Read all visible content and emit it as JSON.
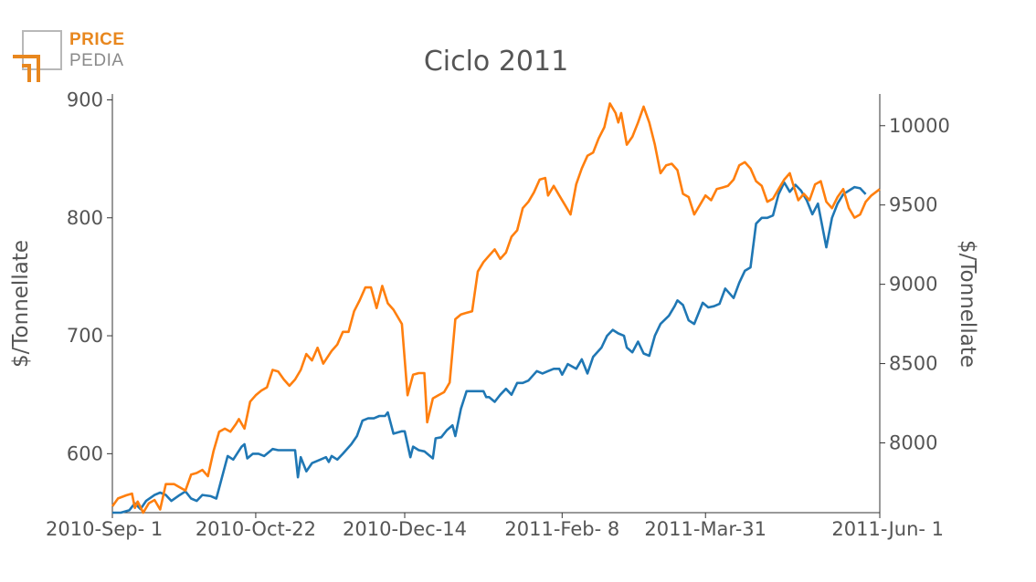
{
  "logo": {
    "top": "PRICE",
    "bottom": "PEDIA",
    "accent": "#e8871e",
    "gray": "#8a8a8a"
  },
  "chart_data": {
    "type": "line",
    "title": "Ciclo 2011",
    "ylabel_left": "$/Tonnellate",
    "ylabel_right": "$/Tonnellate",
    "xlim": [
      "2010-09-01",
      "2011-06-01"
    ],
    "ylim_left": [
      550,
      905
    ],
    "ylim_right": [
      7560,
      10200
    ],
    "x_ticks": [
      {
        "date": "2010-09-01",
        "label": "2010-Sep- 1"
      },
      {
        "date": "2010-10-22",
        "label": "2010-Oct-22"
      },
      {
        "date": "2010-12-14",
        "label": "2010-Dec-14"
      },
      {
        "date": "2011-02-08",
        "label": "2011-Feb- 8"
      },
      {
        "date": "2011-03-31",
        "label": "2011-Mar-31"
      },
      {
        "date": "2011-06-01",
        "label": "2011-Jun- 1"
      }
    ],
    "y_ticks_left": [
      600,
      700,
      800,
      900
    ],
    "y_ticks_right": [
      8000,
      8500,
      9000,
      9500,
      10000
    ],
    "grid": false,
    "legend": "none",
    "series": [
      {
        "axis": "left",
        "color": "#1f77b4",
        "points": [
          [
            "2010-09-01",
            550
          ],
          [
            "2010-09-04",
            550
          ],
          [
            "2010-09-07",
            552
          ],
          [
            "2010-09-09",
            558
          ],
          [
            "2010-09-11",
            553
          ],
          [
            "2010-09-13",
            560
          ],
          [
            "2010-09-16",
            565
          ],
          [
            "2010-09-18",
            567
          ],
          [
            "2010-09-20",
            565
          ],
          [
            "2010-09-22",
            560
          ],
          [
            "2010-09-25",
            565
          ],
          [
            "2010-09-27",
            568
          ],
          [
            "2010-09-29",
            562
          ],
          [
            "2010-10-01",
            560
          ],
          [
            "2010-10-03",
            565
          ],
          [
            "2010-10-06",
            564
          ],
          [
            "2010-10-08",
            562
          ],
          [
            "2010-10-10",
            580
          ],
          [
            "2010-10-12",
            598
          ],
          [
            "2010-10-14",
            595
          ],
          [
            "2010-10-17",
            606
          ],
          [
            "2010-10-18",
            608
          ],
          [
            "2010-10-19",
            596
          ],
          [
            "2010-10-21",
            600
          ],
          [
            "2010-10-23",
            600
          ],
          [
            "2010-10-25",
            598
          ],
          [
            "2010-10-28",
            604
          ],
          [
            "2010-10-30",
            603
          ],
          [
            "2010-11-02",
            603
          ],
          [
            "2010-11-05",
            603
          ],
          [
            "2010-11-06",
            580
          ],
          [
            "2010-11-07",
            597
          ],
          [
            "2010-11-09",
            585
          ],
          [
            "2010-11-11",
            592
          ],
          [
            "2010-11-14",
            595
          ],
          [
            "2010-11-16",
            597
          ],
          [
            "2010-11-17",
            593
          ],
          [
            "2010-11-18",
            598
          ],
          [
            "2010-11-20",
            595
          ],
          [
            "2010-11-22",
            600
          ],
          [
            "2010-11-25",
            608
          ],
          [
            "2010-11-27",
            615
          ],
          [
            "2010-11-29",
            628
          ],
          [
            "2010-12-01",
            630
          ],
          [
            "2010-12-03",
            630
          ],
          [
            "2010-12-05",
            632
          ],
          [
            "2010-12-07",
            632
          ],
          [
            "2010-12-08",
            635
          ],
          [
            "2010-12-10",
            617
          ],
          [
            "2010-12-13",
            619
          ],
          [
            "2010-12-14",
            619
          ],
          [
            "2010-12-16",
            597
          ],
          [
            "2010-12-17",
            606
          ],
          [
            "2010-12-19",
            603
          ],
          [
            "2010-12-21",
            602
          ],
          [
            "2010-12-24",
            596
          ],
          [
            "2010-12-25",
            613
          ],
          [
            "2010-12-27",
            614
          ],
          [
            "2010-12-29",
            620
          ],
          [
            "2010-12-31",
            624
          ],
          [
            "2011-01-01",
            615
          ],
          [
            "2011-01-03",
            638
          ],
          [
            "2011-01-05",
            653
          ],
          [
            "2011-01-07",
            653
          ],
          [
            "2011-01-09",
            653
          ],
          [
            "2011-01-11",
            653
          ],
          [
            "2011-01-12",
            648
          ],
          [
            "2011-01-13",
            648
          ],
          [
            "2011-01-15",
            644
          ],
          [
            "2011-01-17",
            650
          ],
          [
            "2011-01-19",
            655
          ],
          [
            "2011-01-21",
            650
          ],
          [
            "2011-01-23",
            660
          ],
          [
            "2011-01-25",
            660
          ],
          [
            "2011-01-27",
            662
          ],
          [
            "2011-01-30",
            670
          ],
          [
            "2011-02-01",
            668
          ],
          [
            "2011-02-03",
            670
          ],
          [
            "2011-02-05",
            672
          ],
          [
            "2011-02-07",
            672
          ],
          [
            "2011-02-08",
            667
          ],
          [
            "2011-02-10",
            676
          ],
          [
            "2011-02-13",
            672
          ],
          [
            "2011-02-15",
            680
          ],
          [
            "2011-02-17",
            668
          ],
          [
            "2011-02-19",
            682
          ],
          [
            "2011-02-22",
            690
          ],
          [
            "2011-02-24",
            700
          ],
          [
            "2011-02-26",
            705
          ],
          [
            "2011-02-28",
            702
          ],
          [
            "2011-03-02",
            700
          ],
          [
            "2011-03-03",
            690
          ],
          [
            "2011-03-05",
            686
          ],
          [
            "2011-03-07",
            695
          ],
          [
            "2011-03-09",
            685
          ],
          [
            "2011-03-11",
            683
          ],
          [
            "2011-03-13",
            700
          ],
          [
            "2011-03-15",
            710
          ],
          [
            "2011-03-18",
            717
          ],
          [
            "2011-03-20",
            725
          ],
          [
            "2011-03-21",
            730
          ],
          [
            "2011-03-23",
            726
          ],
          [
            "2011-03-25",
            713
          ],
          [
            "2011-03-27",
            710
          ],
          [
            "2011-03-30",
            728
          ],
          [
            "2011-04-01",
            724
          ],
          [
            "2011-04-03",
            725
          ],
          [
            "2011-04-05",
            727
          ],
          [
            "2011-04-07",
            740
          ],
          [
            "2011-04-10",
            732
          ],
          [
            "2011-04-12",
            745
          ],
          [
            "2011-04-14",
            755
          ],
          [
            "2011-04-16",
            758
          ],
          [
            "2011-04-18",
            795
          ],
          [
            "2011-04-20",
            800
          ],
          [
            "2011-04-22",
            800
          ],
          [
            "2011-04-24",
            802
          ],
          [
            "2011-04-26",
            820
          ],
          [
            "2011-04-28",
            830
          ],
          [
            "2011-04-30",
            822
          ],
          [
            "2011-05-02",
            828
          ],
          [
            "2011-05-04",
            823
          ],
          [
            "2011-05-06",
            815
          ],
          [
            "2011-05-08",
            803
          ],
          [
            "2011-05-10",
            812
          ],
          [
            "2011-05-13",
            775
          ],
          [
            "2011-05-15",
            800
          ],
          [
            "2011-05-17",
            812
          ],
          [
            "2011-05-19",
            820
          ],
          [
            "2011-05-21",
            823
          ],
          [
            "2011-05-23",
            826
          ],
          [
            "2011-05-25",
            825
          ],
          [
            "2011-05-27",
            820
          ]
        ]
      },
      {
        "axis": "right",
        "color": "#ff7f0e",
        "points": [
          [
            "2010-09-01",
            7600
          ],
          [
            "2010-09-03",
            7650
          ],
          [
            "2010-09-06",
            7670
          ],
          [
            "2010-09-08",
            7680
          ],
          [
            "2010-09-09",
            7590
          ],
          [
            "2010-09-10",
            7630
          ],
          [
            "2010-09-12",
            7560
          ],
          [
            "2010-09-14",
            7620
          ],
          [
            "2010-09-16",
            7640
          ],
          [
            "2010-09-18",
            7580
          ],
          [
            "2010-09-20",
            7740
          ],
          [
            "2010-09-23",
            7740
          ],
          [
            "2010-09-25",
            7720
          ],
          [
            "2010-09-27",
            7700
          ],
          [
            "2010-09-29",
            7800
          ],
          [
            "2010-10-01",
            7810
          ],
          [
            "2010-10-03",
            7830
          ],
          [
            "2010-10-05",
            7790
          ],
          [
            "2010-10-07",
            7950
          ],
          [
            "2010-10-09",
            8070
          ],
          [
            "2010-10-11",
            8090
          ],
          [
            "2010-10-13",
            8070
          ],
          [
            "2010-10-15",
            8120
          ],
          [
            "2010-10-16",
            8150
          ],
          [
            "2010-10-18",
            8090
          ],
          [
            "2010-10-20",
            8260
          ],
          [
            "2010-10-22",
            8300
          ],
          [
            "2010-10-24",
            8330
          ],
          [
            "2010-10-26",
            8350
          ],
          [
            "2010-10-28",
            8460
          ],
          [
            "2010-10-30",
            8450
          ],
          [
            "2010-11-01",
            8400
          ],
          [
            "2010-11-03",
            8360
          ],
          [
            "2010-11-05",
            8400
          ],
          [
            "2010-11-07",
            8460
          ],
          [
            "2010-11-09",
            8560
          ],
          [
            "2010-11-11",
            8520
          ],
          [
            "2010-11-13",
            8600
          ],
          [
            "2010-11-15",
            8500
          ],
          [
            "2010-11-18",
            8580
          ],
          [
            "2010-11-20",
            8620
          ],
          [
            "2010-11-22",
            8700
          ],
          [
            "2010-11-24",
            8700
          ],
          [
            "2010-11-26",
            8830
          ],
          [
            "2010-11-28",
            8900
          ],
          [
            "2010-11-30",
            8980
          ],
          [
            "2010-12-02",
            8980
          ],
          [
            "2010-12-04",
            8850
          ],
          [
            "2010-12-06",
            8990
          ],
          [
            "2010-12-08",
            8880
          ],
          [
            "2010-12-10",
            8840
          ],
          [
            "2010-12-13",
            8750
          ],
          [
            "2010-12-15",
            8300
          ],
          [
            "2010-12-17",
            8430
          ],
          [
            "2010-12-19",
            8440
          ],
          [
            "2010-12-21",
            8440
          ],
          [
            "2010-12-22",
            8130
          ],
          [
            "2010-12-24",
            8280
          ],
          [
            "2010-12-26",
            8300
          ],
          [
            "2010-12-28",
            8320
          ],
          [
            "2010-12-30",
            8380
          ],
          [
            "2011-01-01",
            8780
          ],
          [
            "2011-01-03",
            8810
          ],
          [
            "2011-01-05",
            8820
          ],
          [
            "2011-01-07",
            8830
          ],
          [
            "2011-01-09",
            9080
          ],
          [
            "2011-01-11",
            9140
          ],
          [
            "2011-01-13",
            9180
          ],
          [
            "2011-01-15",
            9220
          ],
          [
            "2011-01-17",
            9160
          ],
          [
            "2011-01-19",
            9200
          ],
          [
            "2011-01-21",
            9300
          ],
          [
            "2011-01-23",
            9340
          ],
          [
            "2011-01-25",
            9480
          ],
          [
            "2011-01-27",
            9520
          ],
          [
            "2011-01-29",
            9580
          ],
          [
            "2011-01-31",
            9660
          ],
          [
            "2011-02-02",
            9670
          ],
          [
            "2011-02-03",
            9560
          ],
          [
            "2011-02-05",
            9620
          ],
          [
            "2011-02-07",
            9560
          ],
          [
            "2011-02-09",
            9500
          ],
          [
            "2011-02-11",
            9440
          ],
          [
            "2011-02-13",
            9630
          ],
          [
            "2011-02-15",
            9730
          ],
          [
            "2011-02-17",
            9810
          ],
          [
            "2011-02-19",
            9830
          ],
          [
            "2011-02-21",
            9920
          ],
          [
            "2011-02-23",
            9990
          ],
          [
            "2011-02-25",
            10140
          ],
          [
            "2011-02-27",
            10080
          ],
          [
            "2011-02-28",
            10020
          ],
          [
            "2011-03-01",
            10080
          ],
          [
            "2011-03-03",
            9880
          ],
          [
            "2011-03-05",
            9930
          ],
          [
            "2011-03-07",
            10020
          ],
          [
            "2011-03-09",
            10120
          ],
          [
            "2011-03-11",
            10020
          ],
          [
            "2011-03-13",
            9880
          ],
          [
            "2011-03-15",
            9700
          ],
          [
            "2011-03-17",
            9750
          ],
          [
            "2011-03-19",
            9760
          ],
          [
            "2011-03-21",
            9720
          ],
          [
            "2011-03-23",
            9570
          ],
          [
            "2011-03-25",
            9550
          ],
          [
            "2011-03-27",
            9440
          ],
          [
            "2011-03-29",
            9500
          ],
          [
            "2011-03-31",
            9560
          ],
          [
            "2011-04-02",
            9530
          ],
          [
            "2011-04-04",
            9600
          ],
          [
            "2011-04-06",
            9610
          ],
          [
            "2011-04-08",
            9620
          ],
          [
            "2011-04-10",
            9660
          ],
          [
            "2011-04-12",
            9750
          ],
          [
            "2011-04-14",
            9770
          ],
          [
            "2011-04-16",
            9730
          ],
          [
            "2011-04-18",
            9650
          ],
          [
            "2011-04-20",
            9620
          ],
          [
            "2011-04-22",
            9520
          ],
          [
            "2011-04-24",
            9540
          ],
          [
            "2011-04-26",
            9600
          ],
          [
            "2011-04-28",
            9660
          ],
          [
            "2011-04-30",
            9700
          ],
          [
            "2011-05-01",
            9640
          ],
          [
            "2011-05-03",
            9530
          ],
          [
            "2011-05-05",
            9570
          ],
          [
            "2011-05-07",
            9530
          ],
          [
            "2011-05-09",
            9630
          ],
          [
            "2011-05-11",
            9650
          ],
          [
            "2011-05-13",
            9520
          ],
          [
            "2011-05-15",
            9480
          ],
          [
            "2011-05-17",
            9550
          ],
          [
            "2011-05-19",
            9600
          ],
          [
            "2011-05-21",
            9480
          ],
          [
            "2011-05-23",
            9420
          ],
          [
            "2011-05-25",
            9440
          ],
          [
            "2011-05-27",
            9520
          ],
          [
            "2011-05-29",
            9560
          ],
          [
            "2011-06-01",
            9600
          ]
        ]
      }
    ]
  }
}
